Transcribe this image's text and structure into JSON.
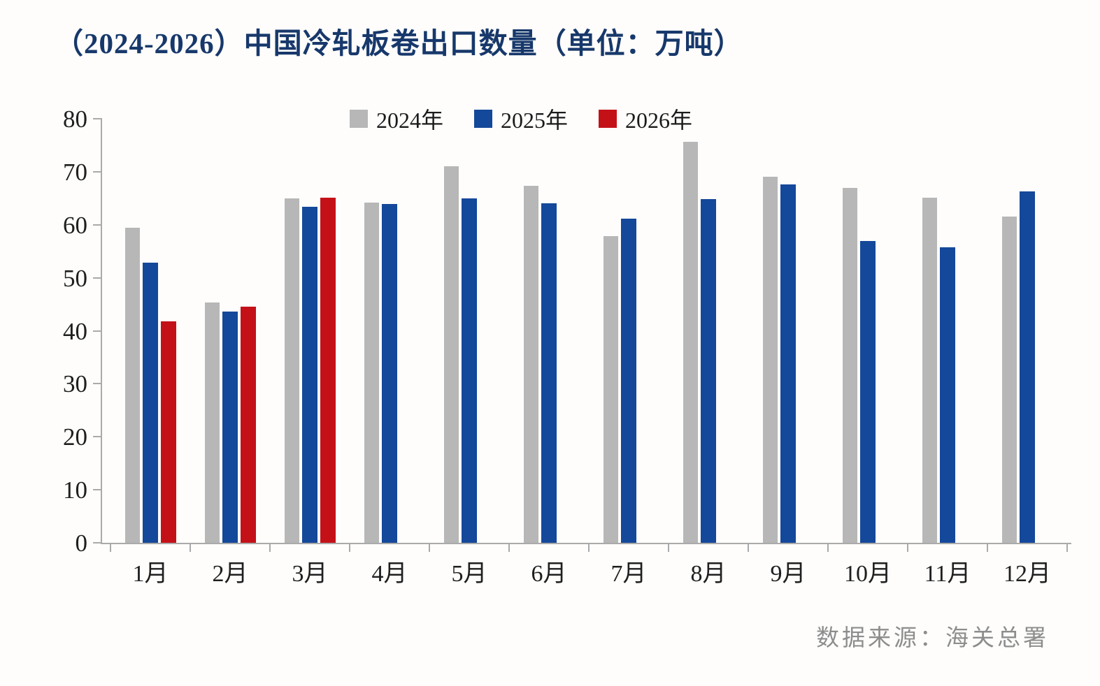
{
  "title": {
    "text": "（2024-2026）中国冷轧板卷出口数量（单位：万吨）",
    "color": "#17386b"
  },
  "source": {
    "text": "数据来源：海关总署"
  },
  "colors": {
    "bar_2024": "#b7b7b7",
    "bar_2025": "#14489a",
    "bar_2026": "#c41118",
    "axis": "#aaaaaa",
    "tick_label": "#1f1f1f",
    "title": "#17386b",
    "source_text": "#8d8d8d"
  },
  "chart_data": {
    "type": "bar",
    "title": "（2024-2026）中国冷轧板卷出口数量（单位：万吨）",
    "unit_label": "万吨",
    "categories": [
      "1月",
      "2月",
      "3月",
      "4月",
      "5月",
      "6月",
      "7月",
      "8月",
      "9月",
      "10月",
      "11月",
      "12月"
    ],
    "series": [
      {
        "name": "2024年",
        "color": "#b7b7b7",
        "values": [
          59.4,
          45.3,
          65.0,
          64.2,
          71.1,
          67.4,
          57.8,
          75.6,
          69.0,
          66.9,
          65.1,
          61.6
        ]
      },
      {
        "name": "2025年",
        "color": "#14489a",
        "values": [
          52.8,
          43.6,
          63.4,
          63.9,
          65.0,
          64.1,
          61.2,
          64.9,
          67.6,
          56.9,
          55.8,
          66.3
        ]
      },
      {
        "name": "2026年",
        "color": "#c41118",
        "values": [
          41.8,
          44.5,
          65.1,
          null,
          null,
          null,
          null,
          null,
          null,
          null,
          null,
          null
        ]
      }
    ],
    "xlabel": "",
    "ylabel": "",
    "ylim": [
      0,
      80
    ],
    "ytick_step": 10,
    "yticks": [
      "0",
      "10",
      "20",
      "30",
      "40",
      "50",
      "60",
      "70",
      "80"
    ],
    "grid": false,
    "legend_position": "top",
    "source": "数据来源：海关总署"
  }
}
